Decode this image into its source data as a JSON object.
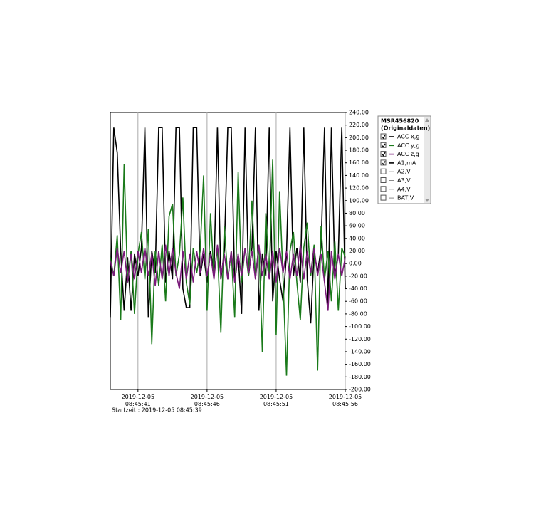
{
  "chart_data": {
    "type": "line",
    "legend_title": [
      "MSR456820",
      "(Originaldaten)"
    ],
    "start_label": "Startzeit : 2019-12-05 08:45:39",
    "x": [
      39,
      39.25,
      39.5,
      39.75,
      40,
      40.25,
      40.5,
      40.75,
      41,
      41.25,
      41.5,
      41.75,
      42,
      42.25,
      42.5,
      42.75,
      43,
      43.25,
      43.5,
      43.75,
      44,
      44.25,
      44.5,
      44.75,
      45,
      45.25,
      45.5,
      45.75,
      46,
      46.25,
      46.5,
      46.75,
      47,
      47.25,
      47.5,
      47.75,
      48,
      48.25,
      48.5,
      48.75,
      49,
      49.25,
      49.5,
      49.75,
      50,
      50.25,
      50.5,
      50.75,
      51,
      51.25,
      51.5,
      51.75,
      52,
      52.25,
      52.5,
      52.75,
      53,
      53.25,
      53.5,
      53.75,
      54,
      54.25,
      54.5,
      54.75,
      55,
      55.25,
      55.5,
      55.75,
      56
    ],
    "xlim": [
      39,
      56
    ],
    "xticks": [
      {
        "value": 41,
        "label": "2019-12-05 08:45:41"
      },
      {
        "value": 46,
        "label": "2019-12-05 08:45:46"
      },
      {
        "value": 51,
        "label": "2019-12-05 08:45:51"
      },
      {
        "value": 56,
        "label": "2019-12-05 08:45:56"
      }
    ],
    "ylim": [
      -200,
      240
    ],
    "yticks": [
      {
        "value": 240,
        "label": "240.00"
      },
      {
        "value": 220,
        "label": "220.00"
      },
      {
        "value": 200,
        "label": "200.00"
      },
      {
        "value": 180,
        "label": "180.00"
      },
      {
        "value": 160,
        "label": "160.00"
      },
      {
        "value": 140,
        "label": "140.00"
      },
      {
        "value": 120,
        "label": "120.00"
      },
      {
        "value": 100,
        "label": "100.00"
      },
      {
        "value": 80,
        "label": "80.00"
      },
      {
        "value": 60,
        "label": "60.00"
      },
      {
        "value": 40,
        "label": "40.00"
      },
      {
        "value": 20,
        "label": "20.00"
      },
      {
        "value": 0,
        "label": "0.00"
      },
      {
        "value": -20,
        "label": "-20.00"
      },
      {
        "value": -40,
        "label": "-40.00"
      },
      {
        "value": -60,
        "label": "-60.00"
      },
      {
        "value": -80,
        "label": "-80.00"
      },
      {
        "value": -100,
        "label": "-100.00"
      },
      {
        "value": -120,
        "label": "-120.00"
      },
      {
        "value": -140,
        "label": "-140.00"
      },
      {
        "value": -160,
        "label": "-160.00"
      },
      {
        "value": -180,
        "label": "-180.00"
      },
      {
        "value": -200,
        "label": "-200.00"
      }
    ],
    "grid": true,
    "series": [
      {
        "name": "ACC x,g",
        "color": "#000000",
        "checked": true,
        "values": [
          -85,
          216,
          176,
          20,
          -75,
          10,
          -75,
          15,
          -20,
          25,
          216,
          -85,
          20,
          -15,
          216,
          216,
          -30,
          20,
          -25,
          216,
          216,
          -40,
          -70,
          -70,
          216,
          216,
          -20,
          15,
          -30,
          20,
          -15,
          216,
          -25,
          20,
          216,
          216,
          -30,
          15,
          -80,
          216,
          -20,
          25,
          216,
          -75,
          15,
          -20,
          216,
          -60,
          20,
          -25,
          -60,
          15,
          216,
          -20,
          25,
          -30,
          216,
          -25,
          -95,
          20,
          -15,
          25,
          216,
          -75,
          216,
          -20,
          15,
          216,
          -40
        ]
      },
      {
        "name": "ACC y,g",
        "color": "#1a7a1a",
        "checked": true,
        "values": [
          10,
          -20,
          45,
          -90,
          158,
          -30,
          20,
          -80,
          15,
          50,
          -25,
          55,
          -128,
          20,
          -35,
          30,
          -60,
          75,
          95,
          -20,
          15,
          105,
          -30,
          -65,
          25,
          -15,
          20,
          140,
          -75,
          80,
          -20,
          25,
          -110,
          60,
          -25,
          20,
          -85,
          145,
          -30,
          25,
          -20,
          100,
          -25,
          30,
          -140,
          80,
          -20,
          165,
          -113,
          115,
          -25,
          -178,
          20,
          50,
          -30,
          -90,
          25,
          65,
          -20,
          30,
          -170,
          60,
          -25,
          20,
          -60,
          35,
          -75,
          25,
          10
        ]
      },
      {
        "name": "ACC z,g",
        "color": "#7a1a7a",
        "checked": true,
        "values": [
          5,
          -20,
          25,
          -15,
          20,
          -30,
          15,
          -25,
          20,
          -15,
          25,
          -20,
          15,
          -35,
          20,
          -25,
          30,
          -20,
          25,
          -15,
          -40,
          20,
          -25,
          15,
          -30,
          20,
          -15,
          25,
          -20,
          15,
          -25,
          30,
          -20,
          15,
          -25,
          20,
          -30,
          15,
          -20,
          25,
          -15,
          20,
          -25,
          30,
          -20,
          15,
          -25,
          20,
          -30,
          25,
          -15,
          20,
          -25,
          15,
          -20,
          30,
          -25,
          20,
          -15,
          25,
          -20,
          15,
          -30,
          -75,
          20,
          -25,
          15,
          -20,
          10
        ]
      }
    ],
    "channels": [
      {
        "name": "A1,mA",
        "color": "#000000",
        "checked": true
      },
      {
        "name": "A2,V",
        "color": "#888888",
        "checked": false
      },
      {
        "name": "A3,V",
        "color": "#888888",
        "checked": false
      },
      {
        "name": "A4,V",
        "color": "#888888",
        "checked": false
      },
      {
        "name": "BAT,V",
        "color": "#888888",
        "checked": false
      }
    ]
  }
}
